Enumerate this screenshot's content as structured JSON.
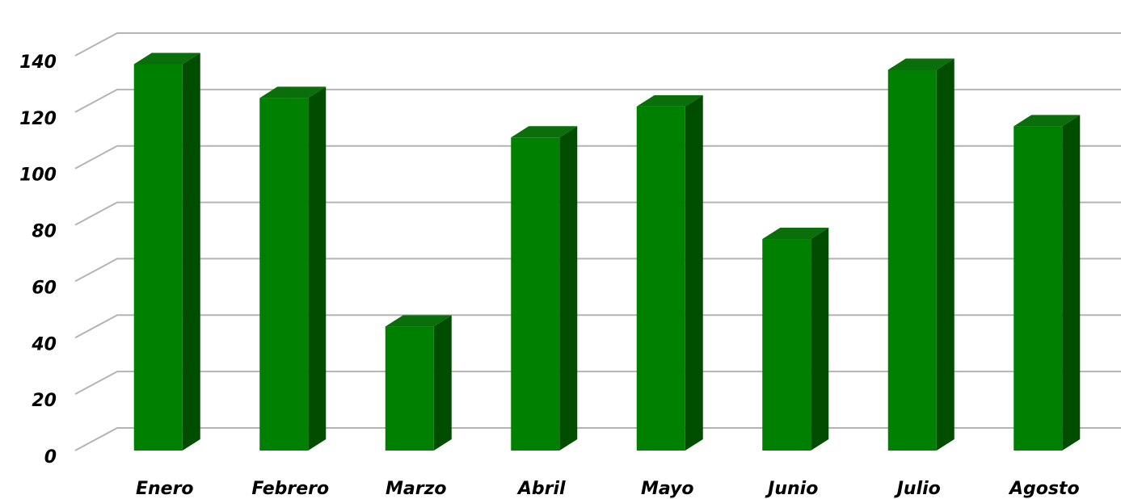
{
  "chart_data": {
    "type": "bar",
    "categories": [
      "Enero",
      "Febrero",
      "Marzo",
      "Abril",
      "Mayo",
      "Junio",
      "Julio",
      "Agosto"
    ],
    "values": [
      137,
      125,
      44,
      111,
      122,
      75,
      135,
      115
    ],
    "title": "",
    "xlabel": "",
    "ylabel": "",
    "ylim": [
      0,
      140
    ],
    "yticks": [
      0,
      20,
      40,
      60,
      80,
      100,
      120,
      140
    ],
    "grid": true,
    "legend": "none",
    "style": "3d",
    "colors": {
      "bar_front": "#008000",
      "bar_side": "#004d00",
      "bar_top": "#0a6e0a",
      "gridline": "#b4b4b4"
    }
  }
}
